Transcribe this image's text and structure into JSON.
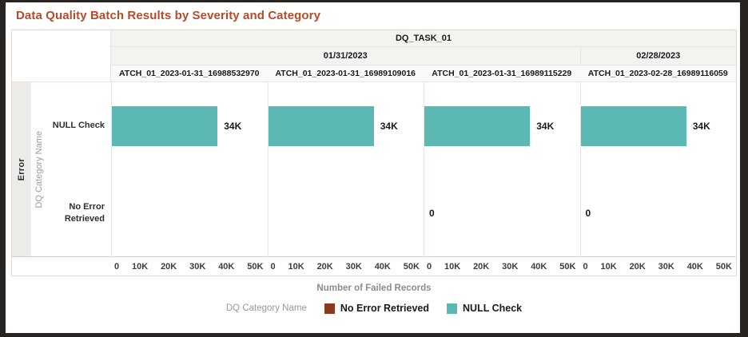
{
  "title": "Data Quality Batch Results by Severity and Category",
  "table": {
    "severity_label": "Error",
    "category_axis_label": "DQ Category Name"
  },
  "axis_title": "Number of Failed Records",
  "legend": {
    "label": "DQ Category Name",
    "items": [
      {
        "label": "No Error Retrieved",
        "color": "#8a3a1e"
      },
      {
        "label": "NULL Check",
        "color": "#5bb8b2"
      }
    ]
  },
  "chart_data": {
    "type": "bar",
    "orientation": "horizontal",
    "facet_header": "DQ_TASK_01",
    "date_groups": [
      {
        "label": "01/31/2023",
        "panel_span": 3
      },
      {
        "label": "02/28/2023",
        "panel_span": 1
      }
    ],
    "categories": [
      "NULL Check",
      "No Error Retrieved"
    ],
    "x_ticks": [
      "0",
      "10K",
      "20K",
      "30K",
      "40K",
      "50K"
    ],
    "xlim": [
      0,
      50000
    ],
    "xlabel": "Number of Failed Records",
    "bar_color": "#5bb8b2",
    "panels": [
      {
        "batch_label": "ATCH_01_2023-01-31_16988532970",
        "values": [
          34000,
          null
        ],
        "value_labels": [
          "34K",
          null
        ]
      },
      {
        "batch_label": "ATCH_01_2023-01-31_16989109016",
        "values": [
          34000,
          null
        ],
        "value_labels": [
          "34K",
          null
        ]
      },
      {
        "batch_label": "ATCH_01_2023-01-31_16989115229",
        "values": [
          34000,
          0
        ],
        "value_labels": [
          "34K",
          "0"
        ]
      },
      {
        "batch_label": "ATCH_01_2023-02-28_16989116059",
        "values": [
          34000,
          0
        ],
        "value_labels": [
          "34K",
          "0"
        ]
      }
    ]
  }
}
